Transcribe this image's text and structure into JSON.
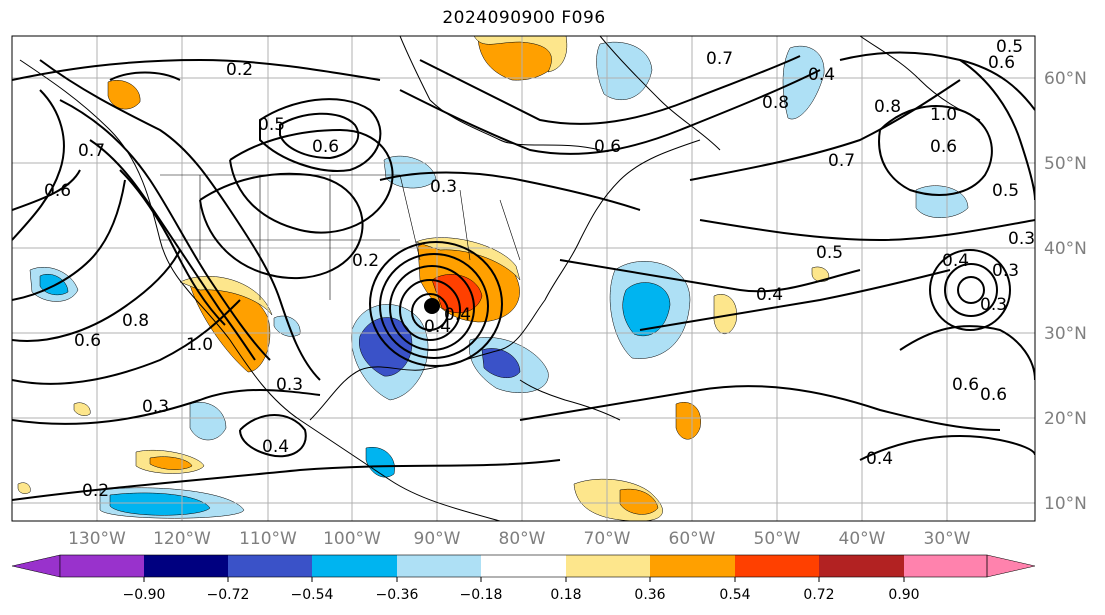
{
  "title": "2024090900 F096",
  "map": {
    "lon_labels": [
      "130°W",
      "120°W",
      "110°W",
      "100°W",
      "90°W",
      "80°W",
      "70°W",
      "60°W",
      "50°W",
      "40°W",
      "30°W"
    ],
    "lat_labels": [
      "60°N",
      "50°N",
      "40°N",
      "30°N",
      "20°N",
      "10°N"
    ],
    "contour_labels": [
      "0.2",
      "0.7",
      "0.6",
      "0.8",
      "0.5",
      "1.0",
      "0.5",
      "0.3",
      "0.2",
      "0.6",
      "0.8",
      "0.4",
      "0.5",
      "0.3",
      "0.6",
      "1.0",
      "0.8",
      "0.6",
      "0.7",
      "0.4",
      "0.3",
      "0.4",
      "0.2",
      "0.6",
      "0.5",
      "0.6",
      "0.4",
      "0.3",
      "0.6",
      "0.4",
      "0.3",
      "0.4",
      "0.6",
      "0.7",
      "0.4",
      "0.3"
    ],
    "cyclone_marker": "low-center"
  },
  "colorbar": {
    "labels": [
      "−0.90",
      "−0.72",
      "−0.54",
      "−0.36",
      "−0.18",
      "0.18",
      "0.36",
      "0.54",
      "0.72",
      "0.90"
    ],
    "colors": [
      "#9932cc",
      "#000080",
      "#3a52c8",
      "#00b4f0",
      "#aee0f5",
      "#ffffff",
      "#fde68c",
      "#ffa000",
      "#ff4000",
      "#b22222",
      "#ff82ad"
    ]
  }
}
